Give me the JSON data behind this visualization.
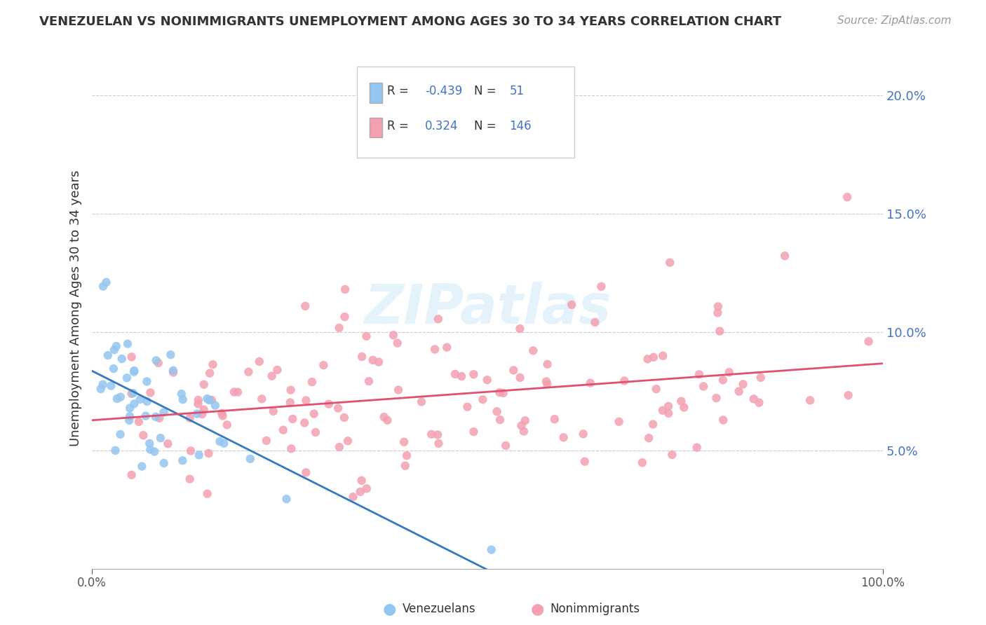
{
  "title": "VENEZUELAN VS NONIMMIGRANTS UNEMPLOYMENT AMONG AGES 30 TO 34 YEARS CORRELATION CHART",
  "source": "Source: ZipAtlas.com",
  "ylabel": "Unemployment Among Ages 30 to 34 years",
  "xlim": [
    0,
    1.0
  ],
  "ylim": [
    0,
    0.22
  ],
  "ytick_positions": [
    0.05,
    0.1,
    0.15,
    0.2
  ],
  "ytick_labels": [
    "5.0%",
    "10.0%",
    "15.0%",
    "20.0%"
  ],
  "venezuelan_color": "#93c6f0",
  "nonimmigrant_color": "#f4a0b0",
  "venezuelan_line_color": "#3579c0",
  "nonimmigrant_line_color": "#e05070",
  "legend_R_venezuelan": "-0.439",
  "legend_N_venezuelan": "51",
  "legend_R_nonimmigrant": "0.324",
  "legend_N_nonimmigrant": "146",
  "venezuelan_label": "Venezuelans",
  "nonimmigrant_label": "Nonimmigrants",
  "watermark": "ZIPatlas",
  "background_color": "#ffffff",
  "grid_color": "#cccccc",
  "venezuelan_R": -0.439,
  "venezuelan_N": 51,
  "nonimmigrant_R": 0.324,
  "nonimmigrant_N": 146,
  "seed": 42
}
